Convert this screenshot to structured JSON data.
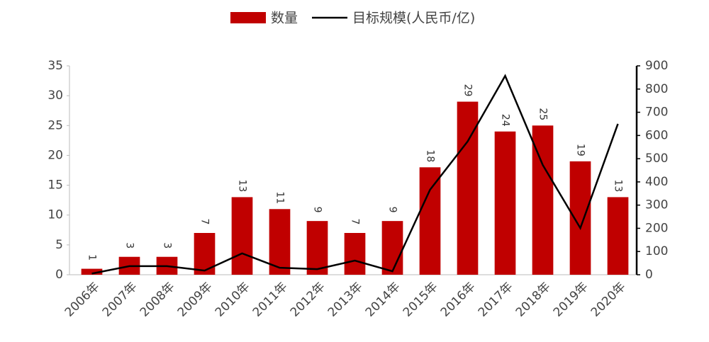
{
  "chart_data": {
    "type": "bar",
    "categories": [
      "2006年",
      "2007年",
      "2008年",
      "2009年",
      "2010年",
      "2011年",
      "2012年",
      "2013年",
      "2014年",
      "2015年",
      "2016年",
      "2017年",
      "2018年",
      "2019年",
      "2020年"
    ],
    "series": [
      {
        "name": "数量",
        "type": "bar",
        "color": "#c00000",
        "values": [
          1,
          3,
          3,
          7,
          13,
          11,
          9,
          7,
          9,
          18,
          29,
          24,
          25,
          19,
          13
        ]
      },
      {
        "name": "目标规模(人民币/亿)",
        "type": "line",
        "axis": "y2",
        "color": "#000000",
        "values": [
          5,
          37,
          37,
          18,
          92,
          30,
          24,
          61,
          15,
          366,
          574,
          857,
          473,
          201,
          650
        ]
      }
    ],
    "ylim": [
      0,
      35
    ],
    "yticks": [
      0,
      5,
      10,
      15,
      20,
      25,
      30,
      35
    ],
    "y2lim": [
      0,
      900
    ],
    "y2ticks": [
      0,
      100,
      200,
      300,
      400,
      500,
      600,
      700,
      800,
      900
    ],
    "legend": "top"
  }
}
